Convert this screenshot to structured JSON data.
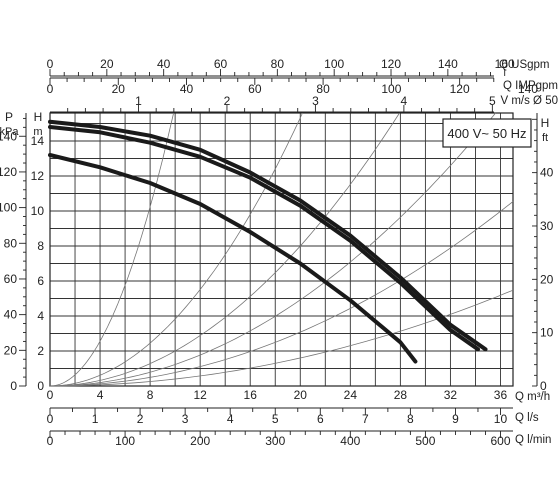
{
  "chart_data": {
    "type": "line",
    "badge": "400 V~ 50 Hz",
    "x": {
      "label_qm3h": "Q m³/h",
      "range": [
        0,
        37
      ],
      "ticks": [
        0,
        4,
        8,
        12,
        16,
        20,
        24,
        28,
        32,
        36
      ],
      "grid_step": 2
    },
    "y": {
      "label_h": "H",
      "unit_h": "m",
      "range": [
        0,
        15.6
      ],
      "ticks": [
        0,
        2,
        4,
        6,
        8,
        10,
        12,
        14
      ],
      "grid_step": 1
    },
    "secondary_axes": {
      "usgpm": {
        "label": "Q USgpm",
        "ticks": [
          0,
          20,
          40,
          60,
          80,
          100,
          120,
          140,
          160
        ]
      },
      "impgpm": {
        "label": "Q IMPgpm",
        "ticks": [
          0,
          20,
          40,
          60,
          80,
          100,
          120,
          140
        ]
      },
      "velocity": {
        "label": "V m/s Ø 50",
        "ticks": [
          1,
          2,
          3,
          4,
          5
        ]
      },
      "kpa": {
        "label_p": "P",
        "label_unit": "kPa",
        "ticks": [
          0,
          20,
          40,
          60,
          80,
          100,
          120,
          140
        ]
      },
      "feet": {
        "label_h": "H",
        "label_unit": "ft",
        "ticks": [
          0,
          10,
          20,
          30,
          40
        ]
      },
      "ls": {
        "label": "Q l/s",
        "ticks": [
          0,
          1,
          2,
          3,
          4,
          5,
          6,
          7,
          8,
          9,
          10
        ]
      },
      "lmin": {
        "label": "Q l/min",
        "ticks": [
          0,
          100,
          200,
          300,
          400,
          500,
          600
        ]
      }
    },
    "series": [
      {
        "points": [
          [
            0,
            15.1
          ],
          [
            4,
            14.8
          ],
          [
            8,
            14.3
          ],
          [
            12,
            13.5
          ],
          [
            16,
            12.2
          ],
          [
            20,
            10.6
          ],
          [
            24,
            8.6
          ],
          [
            28,
            6.2
          ],
          [
            32,
            3.5
          ],
          [
            34.8,
            2.1
          ]
        ]
      },
      {
        "points": [
          [
            0,
            14.8
          ],
          [
            4,
            14.5
          ],
          [
            8,
            13.9
          ],
          [
            12,
            13.1
          ],
          [
            16,
            11.9
          ],
          [
            20,
            10.3
          ],
          [
            24,
            8.3
          ],
          [
            28,
            5.9
          ],
          [
            32,
            3.2
          ],
          [
            34.2,
            2.1
          ]
        ]
      },
      {
        "points": [
          [
            0,
            13.2
          ],
          [
            4,
            12.5
          ],
          [
            8,
            11.6
          ],
          [
            12,
            10.4
          ],
          [
            16,
            8.8
          ],
          [
            20,
            7.0
          ],
          [
            24,
            4.9
          ],
          [
            28,
            2.5
          ],
          [
            29.2,
            1.4
          ]
        ]
      }
    ],
    "system_curves_k": [
      0.16,
      0.0383,
      0.02,
      0.0123,
      0.0077,
      0.004
    ]
  }
}
